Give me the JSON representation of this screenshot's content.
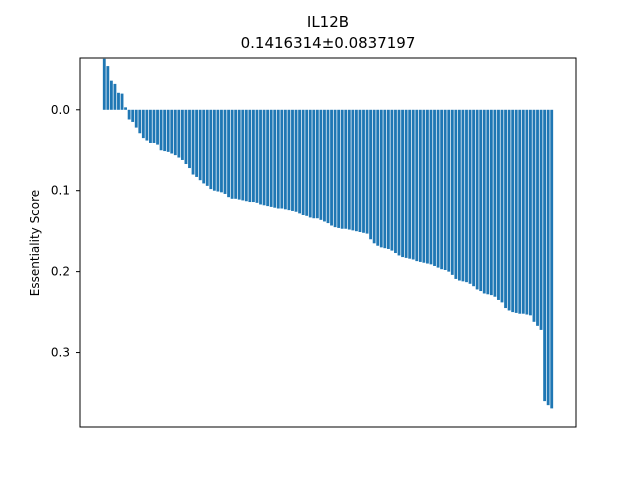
{
  "chart_data": {
    "type": "bar",
    "title": "IL12B",
    "subtitle": "0.1416314±0.0837197",
    "xlabel": "",
    "ylabel": "Essentiality Score",
    "y_inverted": true,
    "ylim": [
      -0.064,
      0.392
    ],
    "yticks": [
      0.0,
      0.1,
      0.2,
      0.3
    ],
    "ytick_labels": [
      "0.0",
      "0.1",
      "0.2",
      "0.3"
    ],
    "grid": false,
    "bar_color": "#1f77b4",
    "values": [
      -0.063,
      -0.054,
      -0.036,
      -0.032,
      -0.021,
      -0.02,
      -0.003,
      0.012,
      0.015,
      0.022,
      0.029,
      0.035,
      0.038,
      0.041,
      0.041,
      0.043,
      0.05,
      0.051,
      0.052,
      0.054,
      0.056,
      0.059,
      0.062,
      0.067,
      0.072,
      0.08,
      0.083,
      0.087,
      0.091,
      0.094,
      0.098,
      0.1,
      0.101,
      0.102,
      0.104,
      0.108,
      0.11,
      0.11,
      0.111,
      0.112,
      0.113,
      0.114,
      0.114,
      0.115,
      0.117,
      0.118,
      0.119,
      0.12,
      0.121,
      0.122,
      0.122,
      0.123,
      0.124,
      0.125,
      0.126,
      0.128,
      0.13,
      0.131,
      0.133,
      0.134,
      0.134,
      0.136,
      0.138,
      0.14,
      0.143,
      0.145,
      0.146,
      0.147,
      0.147,
      0.148,
      0.149,
      0.15,
      0.151,
      0.152,
      0.153,
      0.16,
      0.165,
      0.168,
      0.17,
      0.171,
      0.172,
      0.174,
      0.177,
      0.18,
      0.182,
      0.183,
      0.184,
      0.185,
      0.187,
      0.188,
      0.189,
      0.19,
      0.191,
      0.193,
      0.195,
      0.197,
      0.198,
      0.2,
      0.204,
      0.209,
      0.211,
      0.212,
      0.213,
      0.215,
      0.218,
      0.222,
      0.224,
      0.227,
      0.228,
      0.229,
      0.231,
      0.235,
      0.238,
      0.245,
      0.248,
      0.25,
      0.251,
      0.252,
      0.252,
      0.253,
      0.254,
      0.262,
      0.267,
      0.272,
      0.36,
      0.365,
      0.369
    ]
  }
}
